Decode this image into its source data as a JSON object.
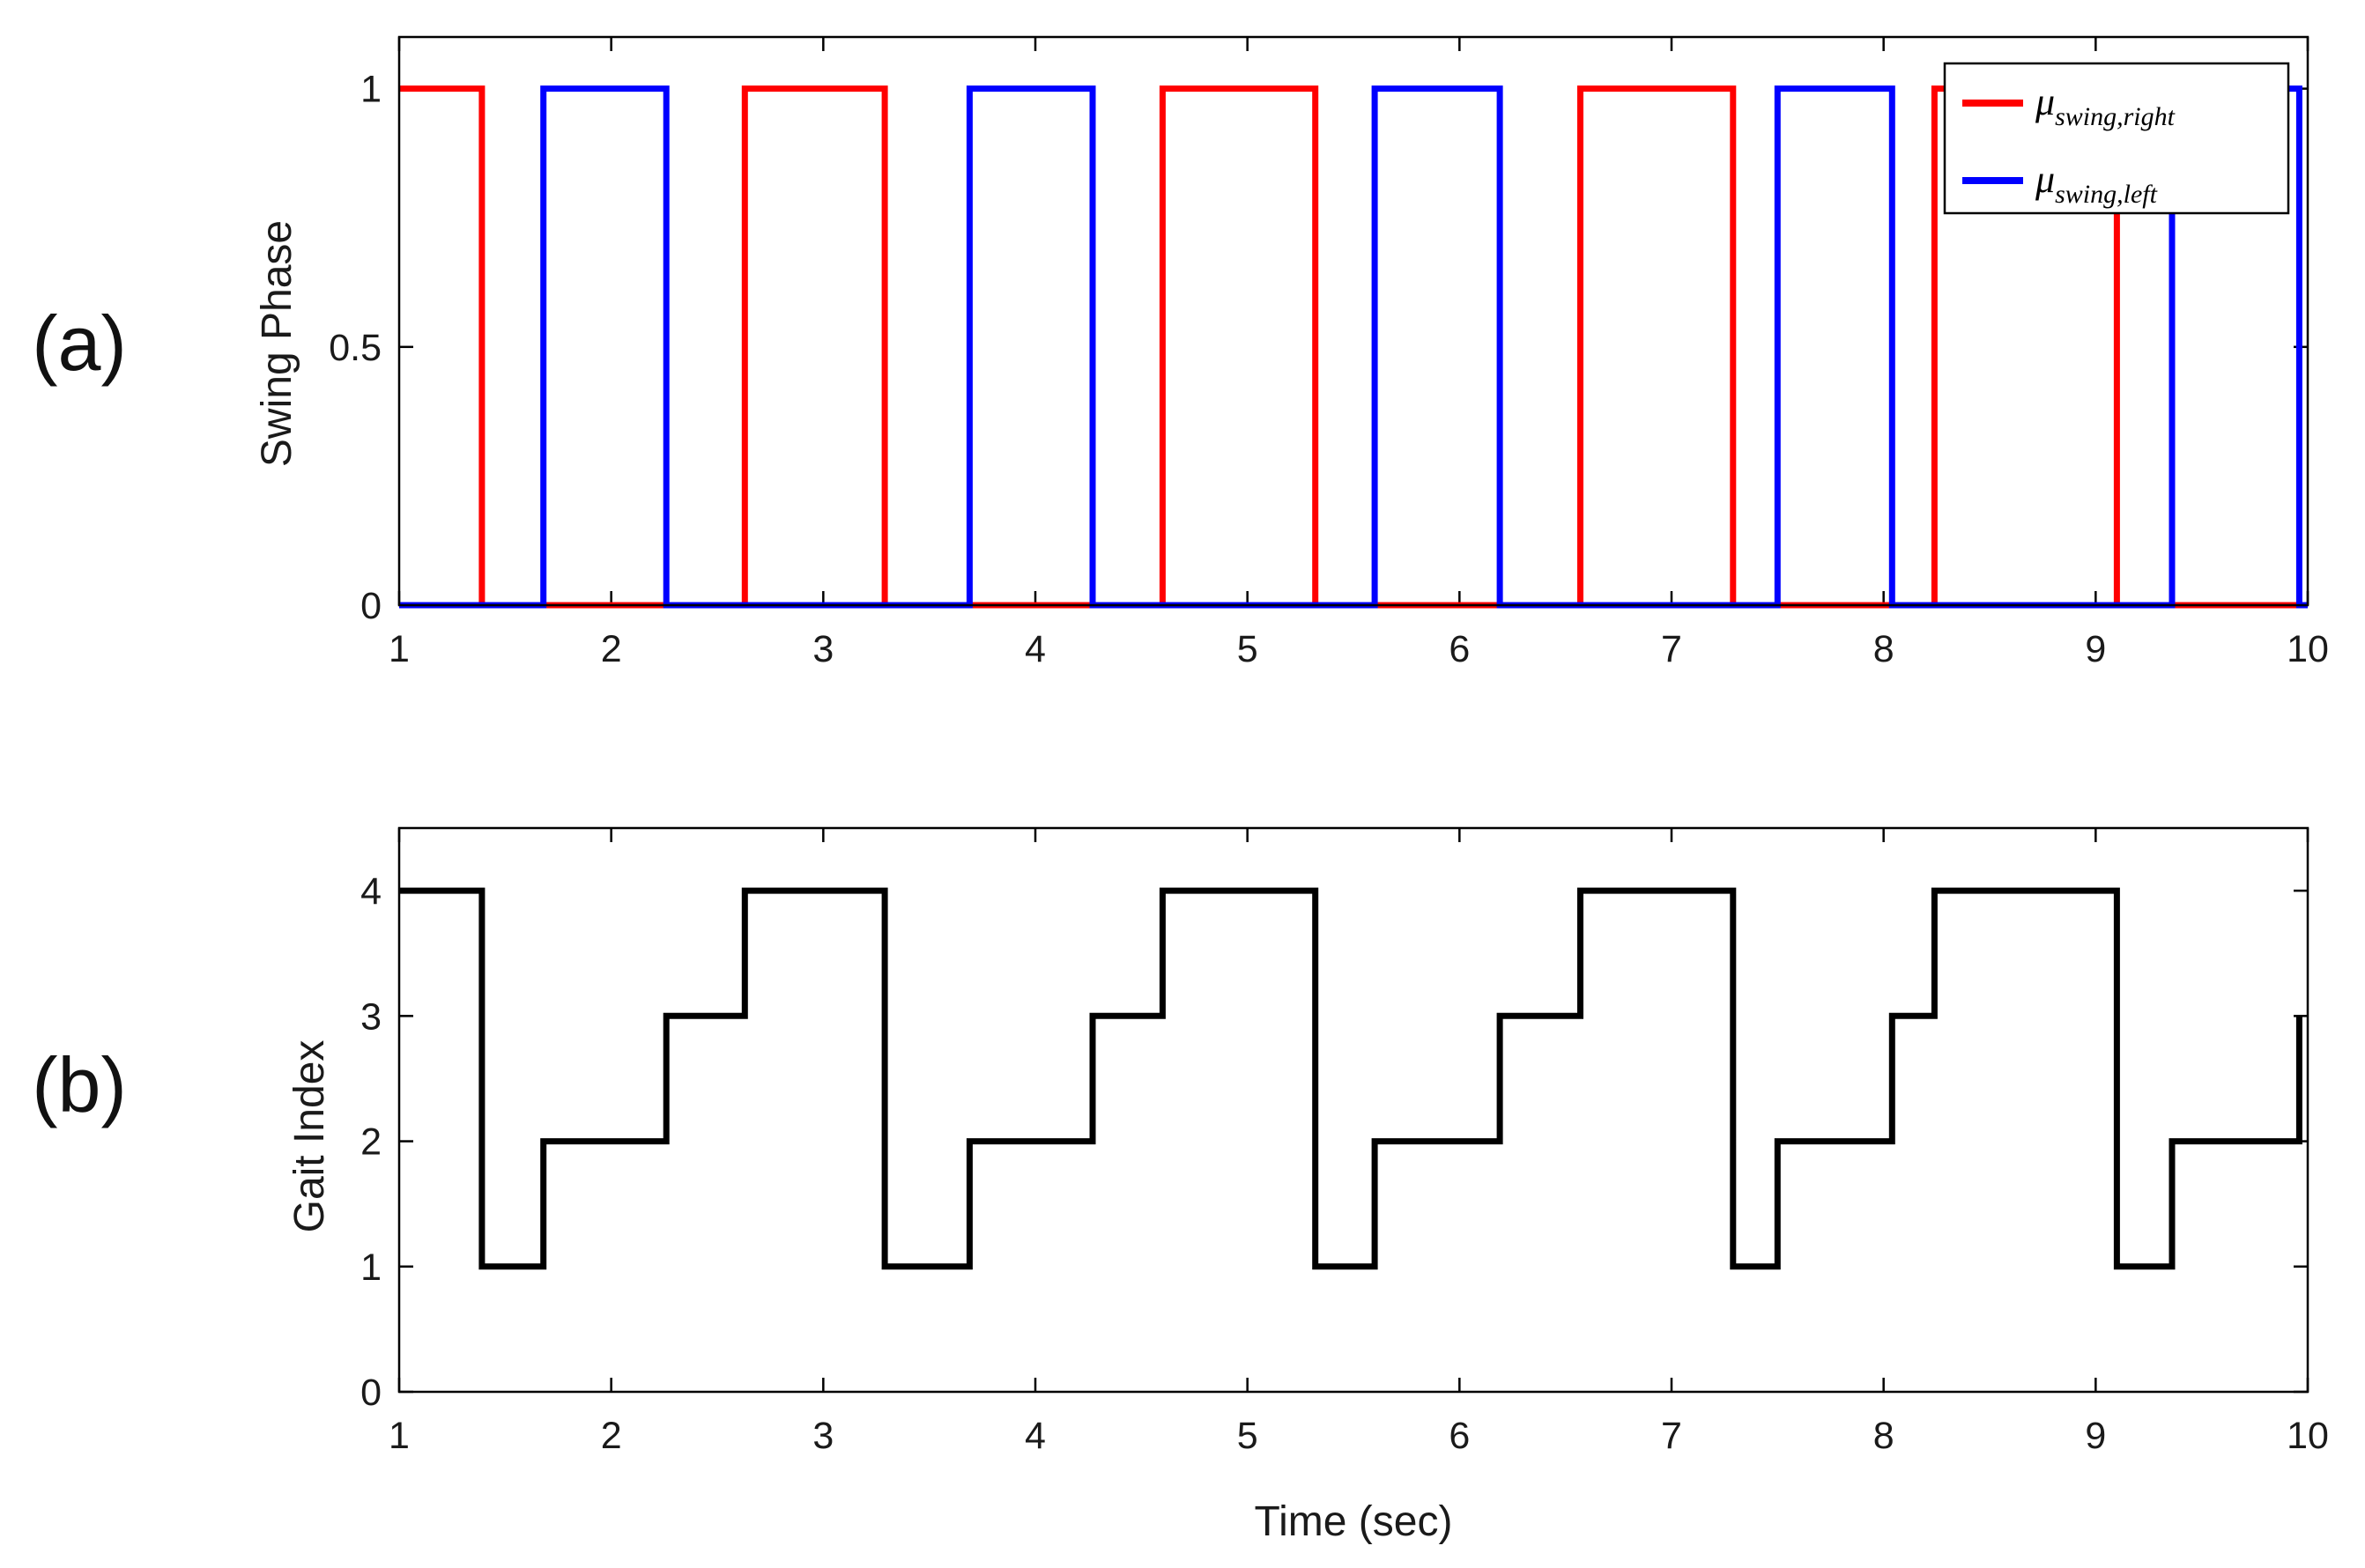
{
  "chart_data": [
    {
      "type": "line",
      "step": true,
      "panel_label": "(a)",
      "title": "",
      "xlabel": "",
      "ylabel": "Swing Phase",
      "xlim": [
        1,
        10
      ],
      "ylim": [
        0,
        1.1
      ],
      "xticks": [
        1,
        2,
        3,
        4,
        5,
        6,
        7,
        8,
        9,
        10
      ],
      "yticks": [
        0,
        0.5,
        1
      ],
      "ytick_labels": [
        "0",
        "0.5",
        "1"
      ],
      "legend_position": "top-right",
      "series": [
        {
          "name": "μswing,right",
          "legend_symbol": "μ",
          "legend_subscript": "swing,right",
          "color": "#ff0000",
          "x": [
            1,
            1.39,
            1.39,
            2.63,
            2.63,
            3.29,
            3.29,
            4.6,
            4.6,
            5.32,
            5.32,
            6.57,
            6.57,
            7.29,
            7.29,
            8.24,
            8.24,
            9.1,
            9.1,
            10
          ],
          "y": [
            1,
            1,
            0,
            0,
            1,
            1,
            0,
            0,
            1,
            1,
            0,
            0,
            1,
            1,
            0,
            0,
            1,
            1,
            0,
            0
          ]
        },
        {
          "name": "μswing,left",
          "legend_symbol": "μ",
          "legend_subscript": "swing,left",
          "color": "#0000ff",
          "x": [
            1,
            1.68,
            1.68,
            2.26,
            2.26,
            3.69,
            3.69,
            4.27,
            4.27,
            5.6,
            5.6,
            6.19,
            6.19,
            7.5,
            7.5,
            8.04,
            8.04,
            9.36,
            9.36,
            9.96,
            9.96,
            10
          ],
          "y": [
            0,
            0,
            1,
            1,
            0,
            0,
            1,
            1,
            0,
            0,
            1,
            1,
            0,
            0,
            1,
            1,
            0,
            0,
            1,
            1,
            0,
            0
          ]
        }
      ]
    },
    {
      "type": "line",
      "step": true,
      "panel_label": "(b)",
      "title": "",
      "xlabel": "Time (sec)",
      "ylabel": "Gait Index",
      "xlim": [
        1,
        10
      ],
      "ylim": [
        0,
        4.5
      ],
      "xticks": [
        1,
        2,
        3,
        4,
        5,
        6,
        7,
        8,
        9,
        10
      ],
      "yticks": [
        0,
        1,
        2,
        3,
        4
      ],
      "ytick_labels": [
        "0",
        "1",
        "2",
        "3",
        "4"
      ],
      "series": [
        {
          "name": "Gait Index",
          "color": "#000000",
          "x": [
            1,
            1.39,
            1.39,
            1.68,
            1.68,
            2.26,
            2.26,
            2.63,
            2.63,
            3.29,
            3.29,
            3.69,
            3.69,
            4.27,
            4.27,
            4.6,
            4.6,
            5.32,
            5.32,
            5.6,
            5.6,
            6.19,
            6.19,
            6.57,
            6.57,
            7.29,
            7.29,
            7.5,
            7.5,
            8.04,
            8.04,
            8.24,
            8.24,
            9.1,
            9.1,
            9.36,
            9.36,
            9.96,
            9.96
          ],
          "y": [
            4,
            4,
            1,
            1,
            2,
            2,
            3,
            3,
            4,
            4,
            1,
            1,
            2,
            2,
            3,
            3,
            4,
            4,
            1,
            1,
            2,
            2,
            3,
            3,
            4,
            4,
            1,
            1,
            2,
            2,
            3,
            3,
            4,
            4,
            1,
            1,
            2,
            2,
            3
          ]
        }
      ]
    }
  ]
}
